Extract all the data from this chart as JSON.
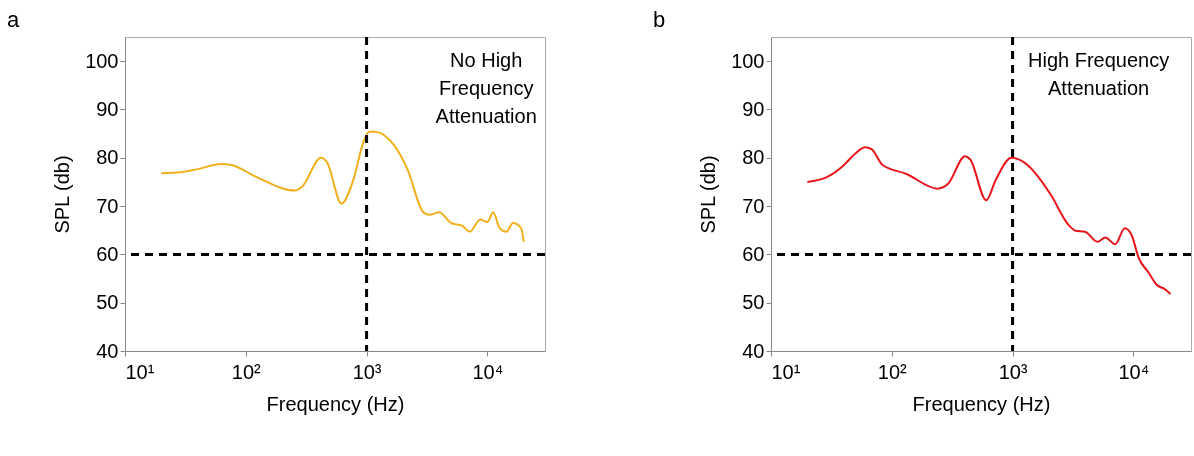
{
  "chart_data": [
    {
      "type": "line",
      "title": "a",
      "xlabel": "Frequency (Hz)",
      "ylabel": "SPL (db)",
      "log": "x",
      "xlim": [
        10,
        30000
      ],
      "xticks": [
        {
          "value": 10,
          "label": "10¹"
        },
        {
          "value": 100,
          "label": "10²"
        },
        {
          "value": 1000,
          "label": "10³"
        },
        {
          "value": 10000,
          "label": "10⁴"
        }
      ],
      "ylim": [
        40,
        105
      ],
      "yticks": [
        40,
        50,
        60,
        70,
        80,
        90,
        100
      ],
      "series": [
        {
          "color": "#f0b01c",
          "x": [
            20,
            29,
            39,
            63,
            76,
            123,
            256,
            290,
            420,
            470,
            620,
            770,
            955,
            1050,
            1170,
            1700,
            2180,
            2960,
            3320,
            3980,
            5100,
            6130,
            7130,
            8760,
            10000,
            11200,
            12600,
            14400,
            16300,
            19000,
            20000
          ],
          "values": [
            76.8,
            77.0,
            77.6,
            78.7,
            78.5,
            76.0,
            73.2,
            73.9,
            80.0,
            79.1,
            70.5,
            75.1,
            83.7,
            85.4,
            85.4,
            82.5,
            77.6,
            68.7,
            68.2,
            68.7,
            66.4,
            66.0,
            64.7,
            67.2,
            66.7,
            68.7,
            65.5,
            64.7,
            66.5,
            65.5,
            62.6
          ]
        }
      ],
      "ref_lines": [
        {
          "axis": "y",
          "value": 60,
          "color": "#000000",
          "line_style": "dashed"
        },
        {
          "axis": "x",
          "value": 1000,
          "color": "#000000",
          "line_style": "dashed"
        }
      ],
      "annotations": [
        "No High\nFrequency\nAttenuation"
      ]
    },
    {
      "type": "line",
      "title": "b",
      "xlabel": "Frequency (Hz)",
      "ylabel": "SPL (db)",
      "log": "x",
      "xlim": [
        10,
        30000
      ],
      "xticks": [
        {
          "value": 10,
          "label": "10¹"
        },
        {
          "value": 100,
          "label": "10²"
        },
        {
          "value": 1000,
          "label": "10³"
        },
        {
          "value": 10000,
          "label": "10⁴"
        }
      ],
      "ylim": [
        40,
        105
      ],
      "yticks": [
        40,
        50,
        60,
        70,
        80,
        90,
        100
      ],
      "series": [
        {
          "color": "#e8141c",
          "x": [
            20,
            29,
            39,
            50,
            60,
            68,
            84,
            131,
            240,
            290,
            405,
            445,
            605,
            725,
            980,
            1180,
            2030,
            2930,
            3320,
            3980,
            5030,
            5860,
            7050,
            8500,
            9620,
            11100,
            13400,
            15600,
            18200,
            20300
          ],
          "values": [
            75.0,
            76.0,
            78.2,
            80.9,
            82.2,
            81.8,
            78.5,
            76.7,
            73.6,
            74.5,
            80.3,
            79.7,
            71.2,
            75.4,
            80.0,
            79.4,
            72.7,
            66.0,
            64.9,
            64.7,
            62.6,
            63.5,
            62.1,
            65.4,
            64.1,
            59.2,
            56.2,
            53.7,
            52.8,
            51.8
          ]
        }
      ],
      "ref_lines": [
        {
          "axis": "y",
          "value": 60,
          "color": "#000000",
          "line_style": "dashed"
        },
        {
          "axis": "x",
          "value": 1000,
          "color": "#000000",
          "line_style": "dashed"
        }
      ],
      "annotations": [
        "High Frequency\nAttenuation"
      ]
    }
  ]
}
